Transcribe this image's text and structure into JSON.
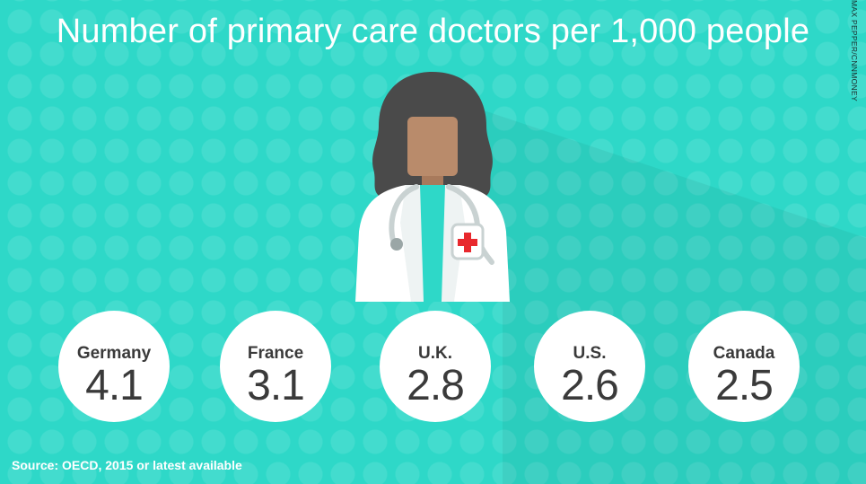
{
  "title": "Number of primary care doctors per 1,000 people",
  "credit": "MAX PEPPER/CNNMONEY",
  "source": "Source: OECD, 2015 or latest available",
  "colors": {
    "background": "#2ed8c8",
    "bubble": "#ffffff",
    "text_dark": "#3a3a3a",
    "coat": "#ffffff",
    "scrubs": "#2ed8c8",
    "skin": "#b98b6b",
    "hair": "#4a4a4a",
    "cross": "#e8282d"
  },
  "icons": [
    "doctor-illustration",
    "stethoscope-icon",
    "red-cross-icon"
  ],
  "chart_data": {
    "type": "bar",
    "title": "Number of primary care doctors per 1,000 people",
    "categories": [
      "Germany",
      "France",
      "U.K.",
      "U.S.",
      "Canada"
    ],
    "values": [
      "4.1",
      "3.1",
      "2.8",
      "2.6",
      "2.5"
    ]
  }
}
